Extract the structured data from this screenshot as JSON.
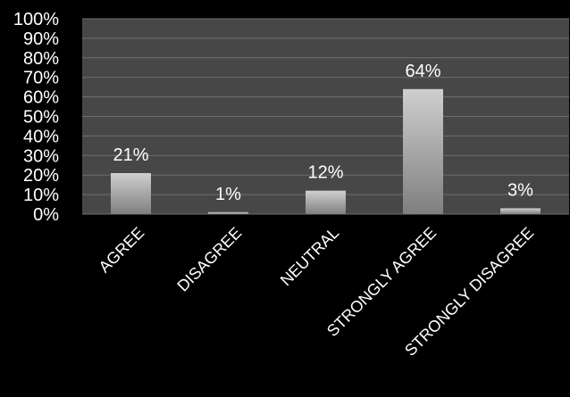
{
  "chart_data": {
    "type": "bar",
    "categories": [
      "AGREE",
      "DISAGREE",
      "NEUTRAL",
      "STRONGLY AGREE",
      "STRONGLY DISAGREE"
    ],
    "values": [
      21,
      1,
      12,
      64,
      3
    ],
    "data_labels": [
      "21%",
      "1%",
      "12%",
      "64%",
      "3%"
    ],
    "ylim": [
      0,
      100
    ],
    "y_ticks": [
      0,
      10,
      20,
      30,
      40,
      50,
      60,
      70,
      80,
      90,
      100
    ],
    "y_tick_labels": [
      "0%",
      "10%",
      "20%",
      "30%",
      "40%",
      "50%",
      "60%",
      "70%",
      "80%",
      "90%",
      "100%"
    ],
    "grid": true,
    "legend": "none",
    "colors": {
      "background": "#000000",
      "plot_area": "#474747",
      "gridline": "#6e6e6e",
      "bar_top": "#cfcfcf",
      "bar_bottom": "#7f7f7f",
      "text": "#ffffff"
    }
  }
}
